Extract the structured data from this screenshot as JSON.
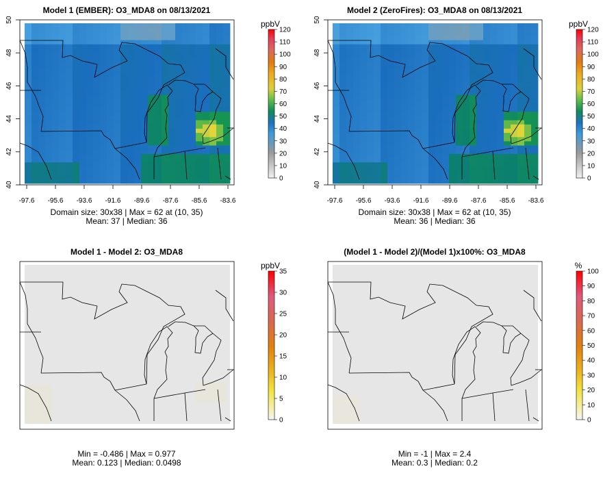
{
  "chart_data": [
    {
      "type": "heatmap",
      "title": "Model 1 (EMBER): O3_MDA8 on 08/13/2021",
      "x_ticks": [
        "-97.6",
        "-95.6",
        "-93.6",
        "-91.6",
        "-89.6",
        "-87.6",
        "-85.6",
        "-83.6"
      ],
      "y_ticks": [
        "40",
        "42",
        "44",
        "46",
        "48",
        "50"
      ],
      "xlim": [
        -97.6,
        -83.6
      ],
      "ylim": [
        40,
        50
      ],
      "grid_size": [
        30,
        38
      ],
      "field": {
        "base": 36,
        "warm_lake": 50,
        "hotspot": 62
      },
      "colorbar": {
        "unit": "ppbV",
        "ticks": [
          "0",
          "10",
          "20",
          "30",
          "40",
          "50",
          "60",
          "70",
          "80",
          "90",
          "100",
          "110",
          "120"
        ],
        "min": 0,
        "max": 120
      },
      "caption_lines": [
        "Domain size: 30x38 | Max = 62 at (10, 35)",
        "Mean: 37 |  Median: 36"
      ],
      "stats": {
        "max": 62,
        "max_at": [
          10,
          35
        ],
        "mean": 37,
        "median": 36
      }
    },
    {
      "type": "heatmap",
      "title": "Model 2 (ZeroFires): O3_MDA8 on 08/13/2021",
      "x_ticks": [
        "-97.6",
        "-95.6",
        "-93.6",
        "-91.6",
        "-89.6",
        "-87.6",
        "-85.6",
        "-83.6"
      ],
      "y_ticks": [
        "40",
        "42",
        "44",
        "46",
        "48",
        "50"
      ],
      "xlim": [
        -97.6,
        -83.6
      ],
      "ylim": [
        40,
        50
      ],
      "grid_size": [
        30,
        38
      ],
      "field": {
        "base": 35.5,
        "warm_lake": 50,
        "hotspot": 62
      },
      "colorbar": {
        "unit": "ppbV",
        "ticks": [
          "0",
          "10",
          "20",
          "30",
          "40",
          "50",
          "60",
          "70",
          "80",
          "90",
          "100",
          "110",
          "120"
        ],
        "min": 0,
        "max": 120
      },
      "caption_lines": [
        "Domain size: 30x38 | Max = 62 at (10, 35)",
        "Mean: 36 |  Median: 36"
      ],
      "stats": {
        "max": 62,
        "max_at": [
          10,
          35
        ],
        "mean": 36,
        "median": 36
      }
    },
    {
      "type": "heatmap",
      "title": "Model 1 - Model 2: O3_MDA8",
      "colorbar": {
        "unit": "ppbV",
        "ticks": [
          "0",
          "5",
          "10",
          "15",
          "20",
          "25",
          "30",
          "35"
        ],
        "min": 0,
        "max": 35
      },
      "caption_lines": [
        "Min = -0.486 | Max = 0.977",
        "Mean: 0.123 |  Median: 0.0498"
      ],
      "stats": {
        "min": -0.486,
        "max": 0.977,
        "mean": 0.123,
        "median": 0.0498
      }
    },
    {
      "type": "heatmap",
      "title": "(Model 1 - Model 2)/(Model 1)x100%: O3_MDA8",
      "colorbar": {
        "unit": "%",
        "ticks": [
          "0",
          "10",
          "20",
          "30",
          "40",
          "50",
          "60",
          "70",
          "80",
          "90",
          "100"
        ],
        "min": 0,
        "max": 100
      },
      "caption_lines": [
        "Min = -1 | Max = 2.4",
        "Mean: 0.3 |  Median: 0.2"
      ],
      "stats": {
        "min": -1,
        "max": 2.4,
        "mean": 0.3,
        "median": 0.2
      }
    }
  ]
}
